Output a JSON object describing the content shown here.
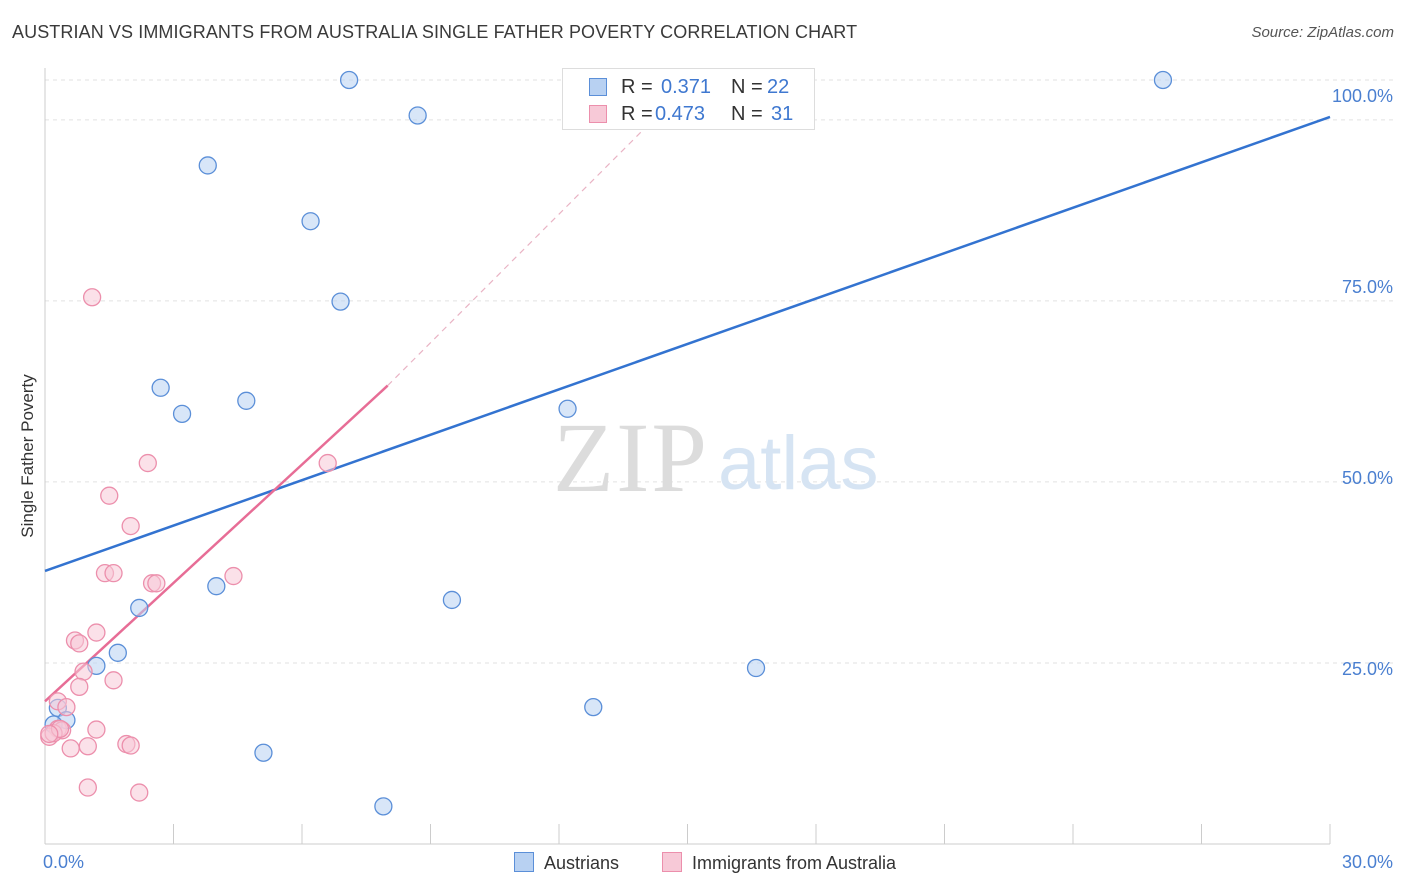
{
  "chart_data": {
    "type": "scatter",
    "title": "AUSTRIAN VS IMMIGRANTS FROM AUSTRALIA SINGLE FATHER POVERTY CORRELATION CHART",
    "source": "Source: ZipAtlas.com",
    "ylabel": "Single Father Poverty",
    "xlim": [
      0,
      30
    ],
    "ylim": [
      0,
      100
    ],
    "x_tick_labels": [
      "0.0%",
      "30.0%"
    ],
    "y_ticks": [
      {
        "value": 25,
        "label": "25.0%"
      },
      {
        "value": 50,
        "label": "50.0%"
      },
      {
        "value": 75,
        "label": "75.0%"
      },
      {
        "value": 100,
        "label": "100.0%"
      }
    ],
    "watermark": {
      "zip": "ZIP",
      "atlas": "atlas"
    },
    "series": [
      {
        "name": "Austrians",
        "color": "#5b8fd8",
        "fill": "#b8d1f2",
        "trend_color": "#3373d0",
        "r_label": "R =",
        "r": "0.371",
        "n_label": "N =",
        "n": "22",
        "trend": {
          "x0": 0,
          "y0": 37.7,
          "x1": 30,
          "y1": 100.4
        },
        "points": [
          [
            7.1,
            105.5
          ],
          [
            8.7,
            100.6
          ],
          [
            3.8,
            93.7
          ],
          [
            6.2,
            86.0
          ],
          [
            6.9,
            74.9
          ],
          [
            2.7,
            63.0
          ],
          [
            3.2,
            59.4
          ],
          [
            4.7,
            61.2
          ],
          [
            12.2,
            60.1
          ],
          [
            4.0,
            35.6
          ],
          [
            2.2,
            32.6
          ],
          [
            9.5,
            33.7
          ],
          [
            1.7,
            26.4
          ],
          [
            1.2,
            24.6
          ],
          [
            16.6,
            24.3
          ],
          [
            0.3,
            18.8
          ],
          [
            0.5,
            17.1
          ],
          [
            12.8,
            18.9
          ],
          [
            5.1,
            12.6
          ],
          [
            7.9,
            5.2
          ],
          [
            26.1,
            105.5
          ],
          [
            0.2,
            16.5
          ]
        ]
      },
      {
        "name": "Immigrants from Australia",
        "color": "#ec8fac",
        "fill": "#f7c9d7",
        "trend_color": "#e76d96",
        "r_label": "R =",
        "r": "0.473",
        "n_label": "N =",
        "n": "31",
        "trend": {
          "x0": 0,
          "y0": 19.7,
          "x1": 8.0,
          "y1": 63.3,
          "x2": 14.2,
          "y2": 100.0
        },
        "points": [
          [
            1.1,
            75.5
          ],
          [
            2.4,
            52.6
          ],
          [
            1.5,
            48.1
          ],
          [
            2.0,
            43.9
          ],
          [
            6.6,
            52.6
          ],
          [
            1.4,
            37.4
          ],
          [
            1.6,
            37.4
          ],
          [
            2.5,
            36.0
          ],
          [
            2.6,
            36.0
          ],
          [
            4.4,
            37.0
          ],
          [
            1.2,
            29.2
          ],
          [
            0.7,
            28.1
          ],
          [
            0.8,
            27.7
          ],
          [
            0.9,
            23.8
          ],
          [
            1.6,
            22.6
          ],
          [
            0.8,
            21.7
          ],
          [
            0.3,
            19.7
          ],
          [
            0.5,
            18.9
          ],
          [
            0.3,
            15.9
          ],
          [
            0.4,
            15.7
          ],
          [
            1.2,
            15.8
          ],
          [
            0.1,
            14.8
          ],
          [
            0.2,
            15.3
          ],
          [
            0.6,
            13.2
          ],
          [
            1.0,
            13.5
          ],
          [
            1.9,
            13.8
          ],
          [
            2.0,
            13.6
          ],
          [
            1.0,
            7.8
          ],
          [
            2.2,
            7.1
          ],
          [
            0.35,
            15.9
          ],
          [
            0.1,
            15.2
          ]
        ]
      }
    ]
  }
}
